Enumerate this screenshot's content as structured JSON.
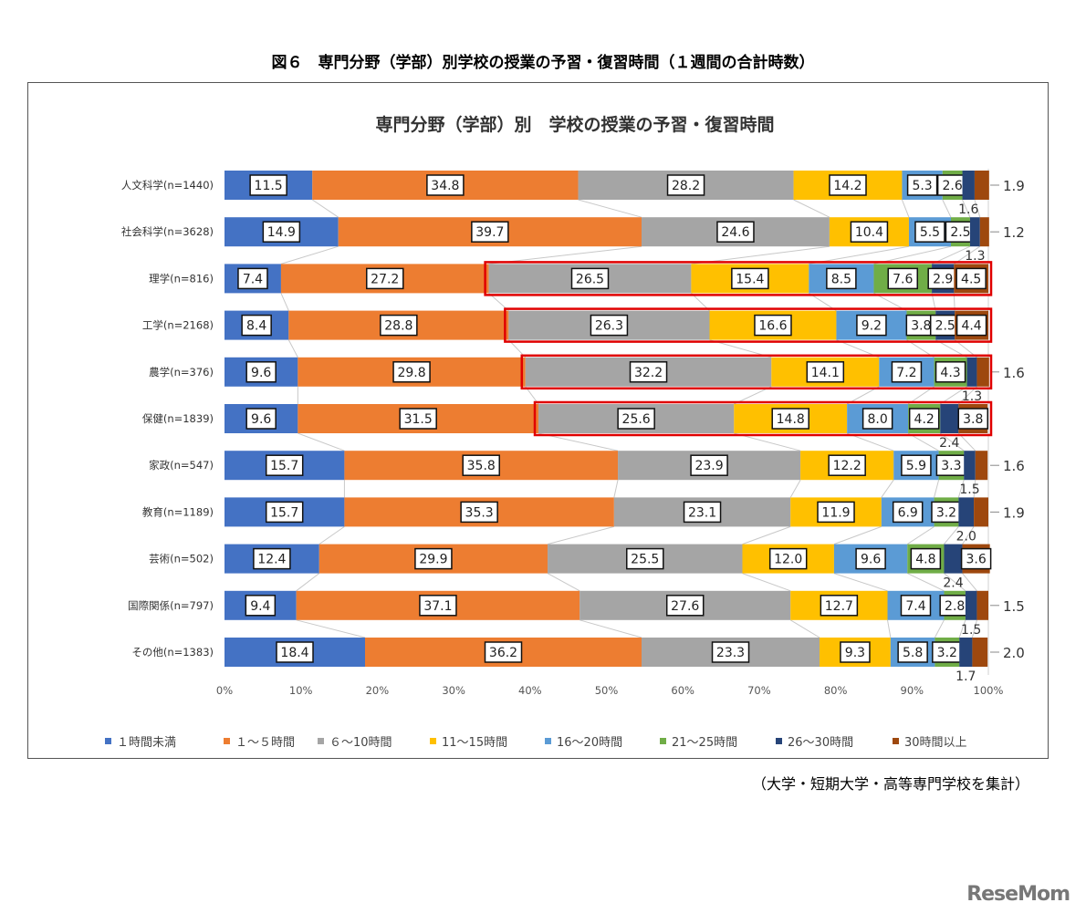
{
  "figure_caption": "図６　専門分野（学部）別学校の授業の予習・復習時間（１週間の合計時数）",
  "note": "（大学・短期大学・高等専門学校を集計）",
  "logo": "ReseMom",
  "chart_data": {
    "type": "bar",
    "orientation": "horizontal",
    "stacked": "100%",
    "title": "専門分野（学部）別　学校の授業の予習・復習時間",
    "categories": [
      "人文科学(n=1440)",
      "社会科学(n=3628)",
      "理学(n=816)",
      "工学(n=2168)",
      "農学(n=376)",
      "保健(n=1839)",
      "家政(n=547)",
      "教育(n=1189)",
      "芸術(n=502)",
      "国際関係(n=797)",
      "その他(n=1383)"
    ],
    "series": [
      {
        "name": "１時間未満",
        "color": "#4472c4",
        "values": [
          11.5,
          14.9,
          7.4,
          8.4,
          9.6,
          9.6,
          15.7,
          15.7,
          12.4,
          9.4,
          18.4
        ]
      },
      {
        "name": "１～５時間",
        "color": "#ed7d31",
        "values": [
          34.8,
          39.7,
          27.2,
          28.8,
          29.8,
          31.5,
          35.8,
          35.3,
          29.9,
          37.1,
          36.2
        ]
      },
      {
        "name": "６～10時間",
        "color": "#a5a5a5",
        "values": [
          28.2,
          24.6,
          26.5,
          26.3,
          32.2,
          25.6,
          23.9,
          23.1,
          25.5,
          27.6,
          23.3
        ]
      },
      {
        "name": "11～15時間",
        "color": "#ffc000",
        "values": [
          14.2,
          10.4,
          15.4,
          16.6,
          14.1,
          14.8,
          12.2,
          11.9,
          12.0,
          12.7,
          9.3
        ]
      },
      {
        "name": "16～20時間",
        "color": "#5b9bd5",
        "values": [
          5.3,
          5.5,
          8.5,
          9.2,
          7.2,
          8.0,
          5.9,
          6.9,
          9.6,
          7.4,
          5.8
        ]
      },
      {
        "name": "21～25時間",
        "color": "#70ad47",
        "values": [
          2.6,
          2.5,
          7.6,
          3.8,
          4.3,
          4.2,
          3.3,
          3.2,
          4.8,
          2.8,
          3.2
        ]
      },
      {
        "name": "26～30時間",
        "color": "#264478",
        "values": [
          1.6,
          1.3,
          2.9,
          2.5,
          1.3,
          2.4,
          1.5,
          2.0,
          2.4,
          1.5,
          1.7
        ]
      },
      {
        "name": "30時間以上",
        "color": "#9e480e",
        "values": [
          1.9,
          1.2,
          4.5,
          4.4,
          1.6,
          3.8,
          1.6,
          1.9,
          3.6,
          1.5,
          2.0
        ]
      }
    ],
    "x_ticks": [
      "0%",
      "10%",
      "20%",
      "30%",
      "40%",
      "50%",
      "60%",
      "70%",
      "80%",
      "90%",
      "100%"
    ],
    "xlim": [
      0,
      100
    ],
    "legend_position": "bottom",
    "highlighted_categories": [
      "理学(n=816)",
      "工学(n=2168)",
      "農学(n=376)",
      "保健(n=1839)"
    ],
    "highlight_color": "#e00000"
  }
}
